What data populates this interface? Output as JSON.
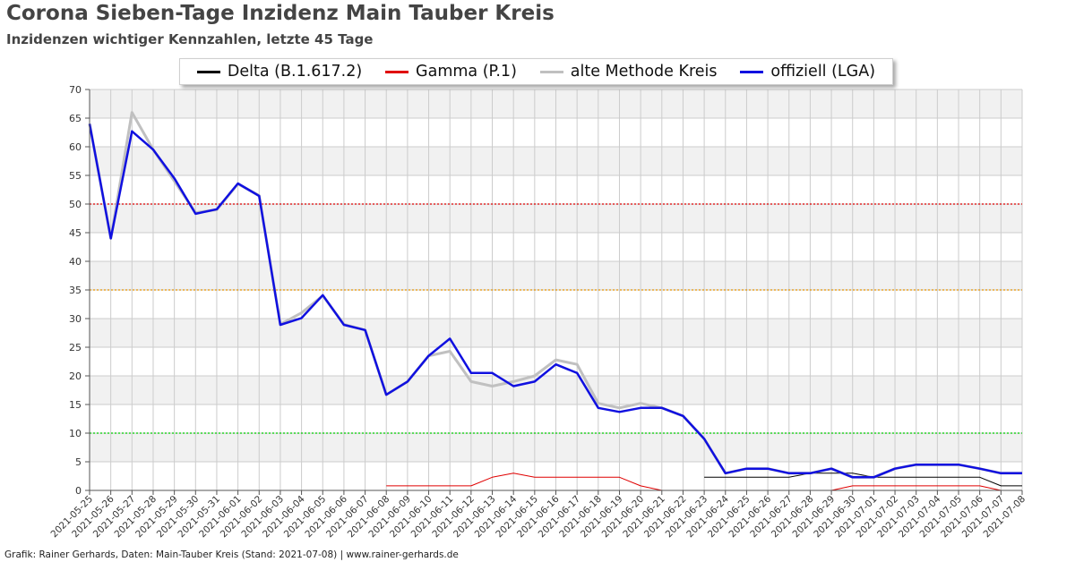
{
  "header": {
    "title": "Corona Sieben-Tage Inzidenz Main Tauber Kreis",
    "subtitle": "Inzidenzen wichtiger Kennzahlen, letzte 45 Tage"
  },
  "footer": {
    "credit": "Grafik: Rainer Gerhards, Daten: Main-Tauber Kreis (Stand: 2021-07-08) | www.rainer-gerhards.de"
  },
  "legend": {
    "delta": "Delta (B.1.617.2)",
    "gamma": "Gamma (P.1)",
    "alte": "alte Methode Kreis",
    "offiziell": "offiziell (LGA)"
  },
  "colors": {
    "delta": "#000000",
    "gamma": "#e00000",
    "alte": "#c0c0c0",
    "offiziell": "#1010e0",
    "threshold_50": "#dd0000",
    "threshold_35": "#e69500",
    "threshold_10": "#00cc00",
    "band": "#f1f1f1",
    "grid": "#cccccc"
  },
  "chart_data": {
    "type": "line",
    "ylim": [
      0,
      70
    ],
    "yticks": [
      0,
      5,
      10,
      15,
      20,
      25,
      30,
      35,
      40,
      45,
      50,
      55,
      60,
      65,
      70
    ],
    "grid": true,
    "alternating_bands": true,
    "legend_position": "top-center",
    "thresholds": [
      {
        "value": 50,
        "color_key": "threshold_50"
      },
      {
        "value": 35,
        "color_key": "threshold_35"
      },
      {
        "value": 10,
        "color_key": "threshold_10"
      }
    ],
    "x": [
      "2021-05-25",
      "2021-05-26",
      "2021-05-27",
      "2021-05-28",
      "2021-05-29",
      "2021-05-30",
      "2021-05-31",
      "2021-06-01",
      "2021-06-02",
      "2021-06-03",
      "2021-06-04",
      "2021-06-05",
      "2021-06-06",
      "2021-06-07",
      "2021-06-08",
      "2021-06-09",
      "2021-06-10",
      "2021-06-11",
      "2021-06-12",
      "2021-06-13",
      "2021-06-14",
      "2021-06-15",
      "2021-06-16",
      "2021-06-17",
      "2021-06-18",
      "2021-06-19",
      "2021-06-20",
      "2021-06-21",
      "2021-06-22",
      "2021-06-23",
      "2021-06-24",
      "2021-06-25",
      "2021-06-26",
      "2021-06-27",
      "2021-06-28",
      "2021-06-29",
      "2021-06-30",
      "2021-07-01",
      "2021-07-02",
      "2021-07-03",
      "2021-07-04",
      "2021-07-05",
      "2021-07-06",
      "2021-07-07",
      "2021-07-08"
    ],
    "series": [
      {
        "name": "Delta (B.1.617.2)",
        "key": "delta",
        "width": 1,
        "values": [
          null,
          null,
          null,
          null,
          null,
          null,
          null,
          null,
          null,
          null,
          null,
          null,
          null,
          null,
          null,
          null,
          null,
          null,
          null,
          null,
          null,
          null,
          null,
          null,
          null,
          null,
          null,
          null,
          null,
          2.3,
          2.3,
          2.3,
          2.3,
          2.3,
          3.0,
          3.0,
          3.0,
          2.3,
          2.3,
          2.3,
          2.3,
          2.3,
          2.3,
          0.8,
          0.8
        ]
      },
      {
        "name": "Gamma (P.1)",
        "key": "gamma",
        "width": 1,
        "values": [
          null,
          null,
          null,
          null,
          null,
          null,
          null,
          null,
          null,
          null,
          null,
          null,
          null,
          null,
          0.8,
          0.8,
          0.8,
          0.8,
          0.8,
          2.3,
          3.0,
          2.3,
          2.3,
          2.3,
          2.3,
          2.3,
          0.8,
          0,
          null,
          null,
          null,
          null,
          null,
          null,
          null,
          0,
          0.8,
          0.8,
          0.8,
          0.8,
          0.8,
          0.8,
          0.8,
          0,
          null
        ]
      },
      {
        "name": "alte Methode Kreis",
        "key": "alte",
        "width": 3,
        "values": [
          64,
          44,
          66,
          59.5,
          54,
          48.5,
          49,
          53.5,
          51.5,
          29,
          31,
          34,
          29,
          28,
          16.7,
          19,
          23.5,
          24.3,
          19,
          18.2,
          19,
          20,
          22.8,
          22,
          15.2,
          14.4,
          15.2,
          14.4,
          13,
          9,
          3,
          3.8,
          3.8,
          3,
          3,
          3.8,
          2.3,
          2.3,
          3.8,
          4.5,
          4.5,
          4.5,
          3.8,
          3,
          3
        ]
      },
      {
        "name": "offiziell (LGA)",
        "key": "offiziell",
        "width": 2.5,
        "values": [
          64,
          44,
          62.7,
          59.5,
          54.5,
          48.3,
          49.1,
          53.6,
          51.4,
          28.9,
          30.1,
          34.1,
          28.9,
          28,
          16.7,
          19,
          23.5,
          26.5,
          20.5,
          20.5,
          18.2,
          19,
          22,
          20.5,
          14.4,
          13.7,
          14.4,
          14.4,
          13,
          9,
          3,
          3.8,
          3.8,
          3,
          3,
          3.8,
          2.3,
          2.3,
          3.8,
          4.5,
          4.5,
          4.5,
          3.8,
          3,
          3
        ]
      }
    ]
  }
}
